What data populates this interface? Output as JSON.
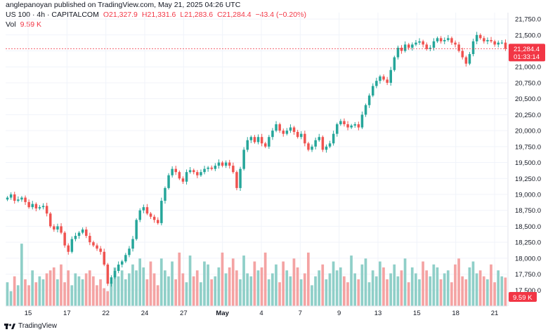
{
  "header": {
    "published_line": "anglepanoyan published on TradingView.com, May 21, 2025 04:26 UTC",
    "symbol": "US 100 · 4h · CAPITALCOM",
    "open": "O21,327.9",
    "high": "H21,331.6",
    "low": "L21,283.6",
    "close": "C21,284.4",
    "change": "−43.4 (−0.20%)",
    "vol_label": "Vol",
    "vol_value": "9.59 K"
  },
  "price_axis": {
    "ticks": [
      "21,750.0",
      "21,500.0",
      "21,250.0",
      "21,000.0",
      "20,750.0",
      "20,500.0",
      "20,250.0",
      "20,000.0",
      "19,750.0",
      "19,500.0",
      "19,250.0",
      "19,000.0",
      "18,750.0",
      "18,500.0",
      "18,250.0",
      "18,000.0",
      "17,750.0",
      "17,500.0"
    ],
    "last_price": "21,284.4",
    "countdown": "01:33:14",
    "vol_badge": "9.59 K"
  },
  "time_axis": {
    "labels": [
      "15",
      "17",
      "22",
      "24",
      "27",
      "May",
      "4",
      "7",
      "9",
      "13",
      "15",
      "18",
      "21"
    ]
  },
  "footer": {
    "brand": "TradingView"
  },
  "colors": {
    "up": "#26a69a",
    "down": "#ef5350",
    "vol_up": "#8fcfc8",
    "vol_down": "#f4a3a3",
    "last_price_line": "#f23645",
    "grid": "#f0f3fa",
    "text": "#131722"
  },
  "chart_data": {
    "type": "candlestick",
    "price_ylim": [
      17250,
      21850
    ],
    "time_labels": [
      "15",
      "17",
      "22",
      "24",
      "27",
      "May",
      "4",
      "7",
      "9",
      "13",
      "15",
      "18",
      "21"
    ],
    "closes": [
      18950,
      19000,
      18900,
      18920,
      18950,
      18880,
      18800,
      18850,
      18780,
      18800,
      18820,
      18700,
      18500,
      18450,
      18500,
      18400,
      18200,
      18100,
      18300,
      18350,
      18400,
      18450,
      18350,
      18250,
      18200,
      18150,
      18100,
      17900,
      17600,
      17700,
      17800,
      17900,
      17950,
      18050,
      18150,
      18300,
      18600,
      18750,
      18800,
      18700,
      18650,
      18600,
      18550,
      18900,
      19100,
      19300,
      19400,
      19350,
      19250,
      19200,
      19350,
      19380,
      19350,
      19300,
      19350,
      19400,
      19420,
      19400,
      19450,
      19500,
      19450,
      19500,
      19450,
      19350,
      19100,
      19400,
      19700,
      19850,
      19900,
      19820,
      19900,
      19800,
      19750,
      19900,
      20000,
      20100,
      20000,
      19950,
      20000,
      20050,
      19980,
      19900,
      19950,
      19800,
      19700,
      19750,
      19850,
      19900,
      19700,
      19750,
      19800,
      19950,
      20100,
      20150,
      20100,
      20050,
      20080,
      20100,
      20050,
      20250,
      20400,
      20550,
      20700,
      20780,
      20850,
      20800,
      20750,
      20950,
      21150,
      21300,
      21250,
      21350,
      21300,
      21350,
      21380,
      21400,
      21350,
      21280,
      21300,
      21400,
      21450,
      21400,
      21420,
      21450,
      21380,
      21350,
      21250,
      21150,
      21050,
      21200,
      21400,
      21500,
      21450,
      21400,
      21420,
      21400,
      21350,
      21380,
      21380,
      21284.4
    ],
    "volumes_k": [
      8,
      5,
      10,
      7,
      21,
      9,
      7,
      12,
      8,
      10,
      9,
      11,
      12,
      13,
      9,
      14,
      8,
      12,
      7,
      11,
      10,
      9,
      11,
      12,
      10,
      7,
      9,
      6,
      5,
      8,
      13,
      10,
      12,
      9,
      11,
      14,
      12,
      16,
      13,
      9,
      15,
      11,
      7,
      16,
      12,
      10,
      15,
      9,
      18,
      11,
      8,
      17,
      10,
      12,
      8,
      15,
      14,
      9,
      10,
      13,
      18,
      11,
      13,
      16,
      12,
      9,
      17,
      11,
      10,
      15,
      12,
      13,
      18,
      9,
      11,
      14,
      8,
      15,
      12,
      10,
      16,
      13,
      9,
      11,
      18,
      7,
      10,
      12,
      14,
      9,
      11,
      15,
      12,
      13,
      10,
      8,
      17,
      11,
      9,
      14,
      16,
      8,
      12,
      10,
      15,
      13,
      9,
      11,
      14,
      10,
      12,
      16,
      8,
      13,
      11,
      9,
      15,
      12,
      10,
      14,
      13,
      9,
      11,
      12,
      8,
      14,
      16,
      10,
      9,
      13,
      15,
      11,
      12,
      10,
      9,
      14,
      8,
      12,
      10,
      9.59
    ]
  }
}
